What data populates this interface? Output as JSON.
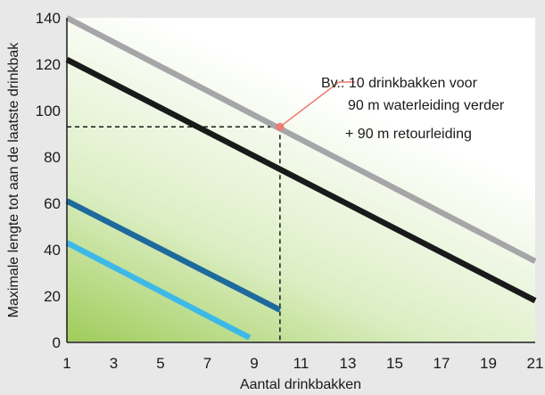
{
  "chart_data": {
    "type": "line",
    "title": "",
    "xlabel": "Aantal drinkbakken",
    "ylabel": "Maximale lengte tot aan de laatste drinkbak",
    "xlim": [
      1,
      21
    ],
    "ylim": [
      0,
      140
    ],
    "x_ticks": [
      "1",
      "3",
      "5",
      "7",
      "9",
      "11",
      "13",
      "15",
      "17",
      "19",
      "21"
    ],
    "y_ticks": [
      "0",
      "20",
      "40",
      "60",
      "80",
      "100",
      "120",
      "140"
    ],
    "grid": false,
    "series": [
      {
        "color": "#a6a6a8",
        "x": [
          1,
          21
        ],
        "y": [
          140,
          35
        ]
      },
      {
        "color": "#1a1a1a",
        "x": [
          1,
          21
        ],
        "y": [
          122,
          18
        ]
      },
      {
        "color": "#1f6a9c",
        "x": [
          1,
          10.1
        ],
        "y": [
          61,
          14
        ]
      },
      {
        "color": "#3db9e8",
        "x": [
          1,
          8.8
        ],
        "y": [
          43,
          2
        ]
      }
    ],
    "reference": {
      "x": 10.1,
      "y": 93,
      "point_color": "#ef7a6e"
    },
    "annotation": {
      "lines": [
        "Bv.: 10 drinkbakken voor",
        "90 m waterleiding verder",
        "+ 90 m retourleiding"
      ]
    }
  }
}
